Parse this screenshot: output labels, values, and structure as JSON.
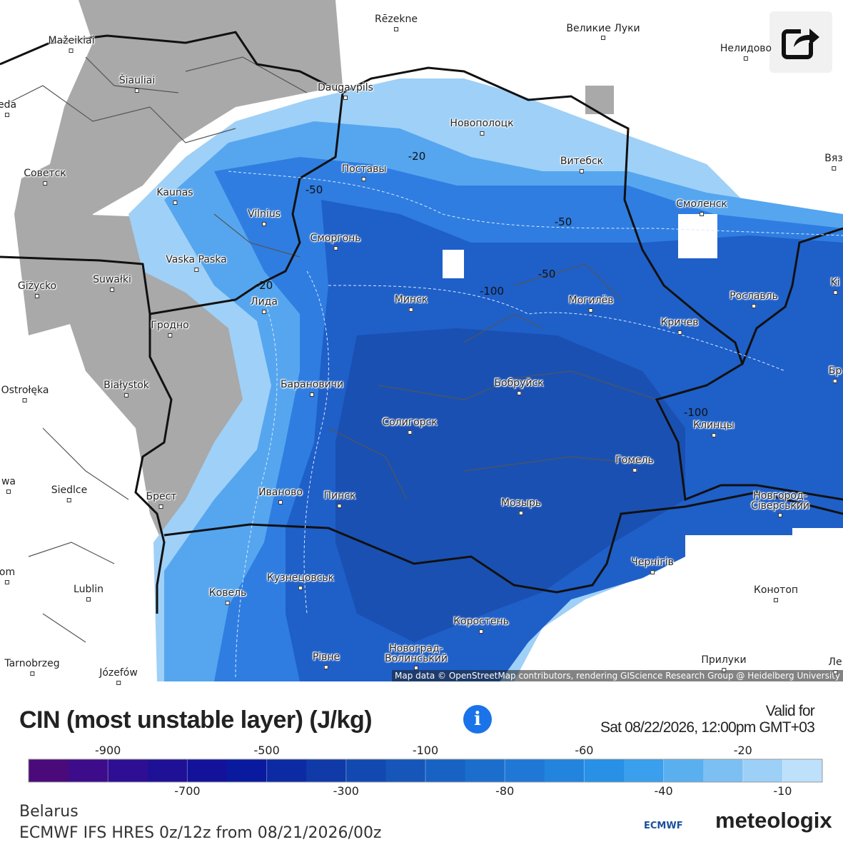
{
  "map": {
    "labels": [
      "Mažeikiai",
      "Rēzekne",
      "Великие Луки",
      "Нелидово",
      "Šiauliai",
      "Daugavpils",
      "eda",
      "Новополоцк",
      "Советск",
      "Витебск",
      "Вяз",
      "Поставы",
      "Kaunas",
      "Vilnius",
      "Сморгонь",
      "Смоленск",
      "Vaska Paska",
      "Suwałki",
      "Giżycko",
      "Минск",
      "Могилёв",
      "Рославль",
      "Ki",
      "Лида",
      "Гродно",
      "Кричев",
      "Białystok",
      "Ostrołęka",
      "Барановичи",
      "Бобруйск",
      "Бр",
      "Солигорск",
      "Клинцы",
      "Гомель",
      "wa",
      "Siedlce",
      "Брест",
      "Иваново",
      "Пинск",
      "Мозырь",
      "Новгород-Сіверський",
      "Чернігів",
      "om",
      "Lublin",
      "Кузнецовськ",
      "Ковель",
      "Конотоп",
      "Коростень",
      "Рівне",
      "Новоград-Волинський",
      "Прилуки",
      "Tarnobrzeg",
      "Józefów",
      "Ле"
    ],
    "contour_labels": [
      "-20",
      "-50",
      "-50",
      "-50",
      "-100",
      "-20",
      "-100"
    ],
    "attribution": "Map data © OpenStreetMap contributors, rendering GIScience Research Group @ Heidelberg University"
  },
  "legend": {
    "title": "CIN (most unstable layer) (J/kg)",
    "valid_for": "Valid for",
    "valid_time": "Sat 08/22/2026, 12:00pm GMT+03",
    "colors": [
      "#4a0a7a",
      "#3d0c8a",
      "#2e0f94",
      "#1f1196",
      "#12139a",
      "#0a1a9e",
      "#0c2aa3",
      "#0f3aa8",
      "#1249b0",
      "#1556b8",
      "#1862c3",
      "#1c6ecc",
      "#1f78d6",
      "#2384de",
      "#2890e5",
      "#3a9fec",
      "#5aafef",
      "#7cc0f3",
      "#9dd0f7",
      "#bde0fb"
    ],
    "ticks": [
      -900,
      -700,
      -500,
      -300,
      -100,
      -80,
      -60,
      -40,
      -20,
      -10
    ]
  },
  "footer": {
    "region": "Belarus",
    "model": "ECMWF IFS HRES 0z/12z from 08/21/2026/00z",
    "logos": [
      "ECMWF",
      "meteologix"
    ]
  }
}
